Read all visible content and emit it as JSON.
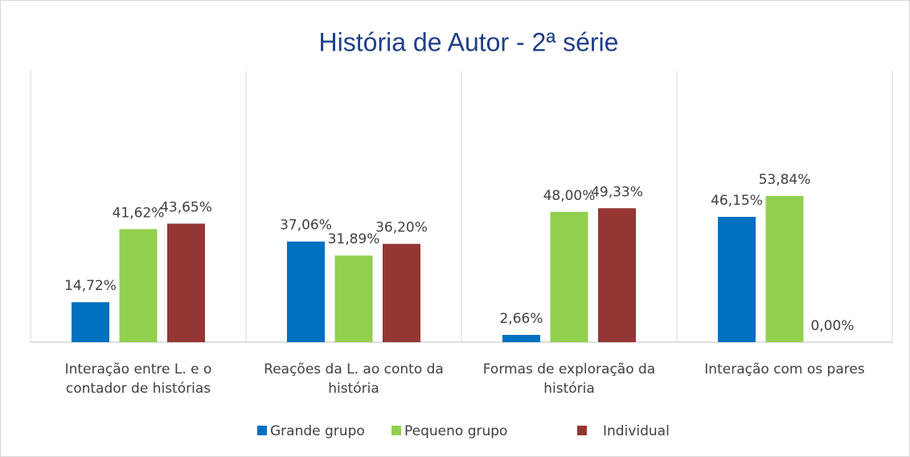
{
  "chart_data": {
    "type": "bar",
    "title": "História de Autor - 2ª série",
    "categories": [
      "Interação entre L. e o contador de histórias",
      "Reações da L. ao conto da história",
      "Formas de exploração da história",
      "Interação com os pares"
    ],
    "series": [
      {
        "name": "Grande grupo",
        "color": "#0070c0",
        "values": [
          14.72,
          37.06,
          2.66,
          46.15
        ],
        "value_labels": [
          "14,72%",
          "37,06%",
          "2,66%",
          "46,15%"
        ]
      },
      {
        "name": "Pequeno grupo",
        "color": "#92d050",
        "values": [
          41.62,
          31.89,
          48.0,
          53.84
        ],
        "value_labels": [
          "41,62%",
          "31,89%",
          "48,00%",
          "53,84%"
        ]
      },
      {
        "name": "Individual",
        "color": "#943634",
        "values": [
          43.65,
          36.2,
          49.33,
          0.0
        ],
        "value_labels": [
          "43,65%",
          "36,20%",
          "49,33%",
          "0,00%"
        ]
      }
    ],
    "ylim": [
      0,
      100
    ],
    "legend": "bottom"
  }
}
